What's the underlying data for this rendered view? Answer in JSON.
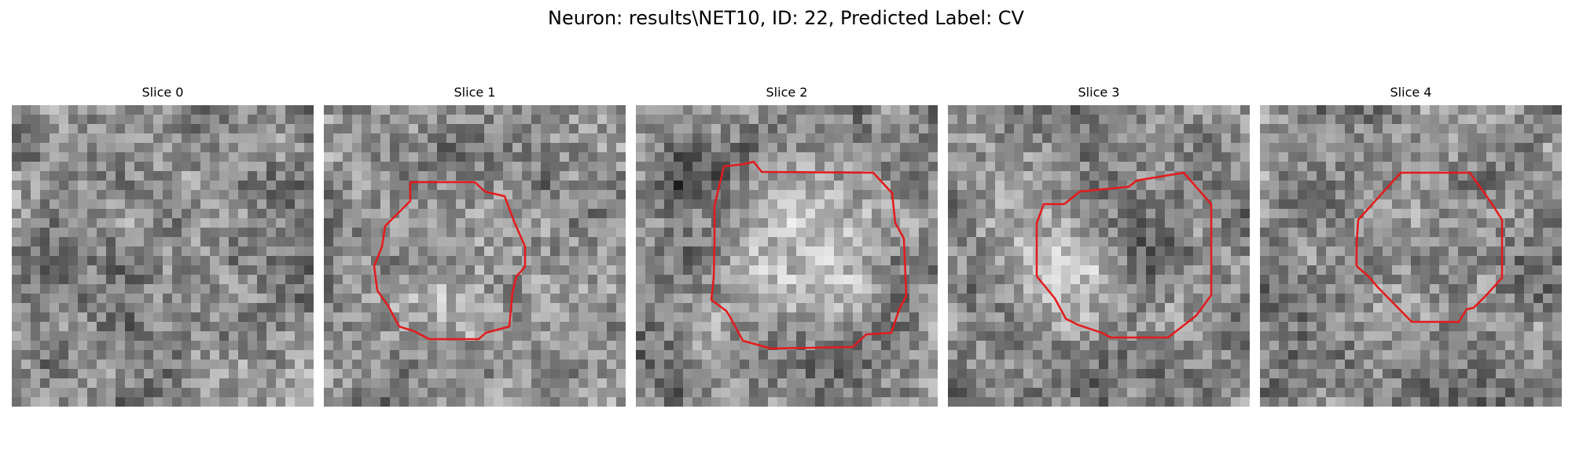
{
  "figure": {
    "title": "Neuron: results\\NET10, ID: 22, Predicted Label: CV"
  },
  "panels": [
    {
      "title": "Slice 0",
      "has_contour": false,
      "contour_color": "#e41a1c"
    },
    {
      "title": "Slice 1",
      "has_contour": true,
      "contour_color": "#e41a1c"
    },
    {
      "title": "Slice 2",
      "has_contour": true,
      "contour_color": "#e41a1c"
    },
    {
      "title": "Slice 3",
      "has_contour": true,
      "contour_color": "#e41a1c"
    },
    {
      "title": "Slice 4",
      "has_contour": true,
      "contour_color": "#e41a1c"
    }
  ],
  "colormap": "gray"
}
